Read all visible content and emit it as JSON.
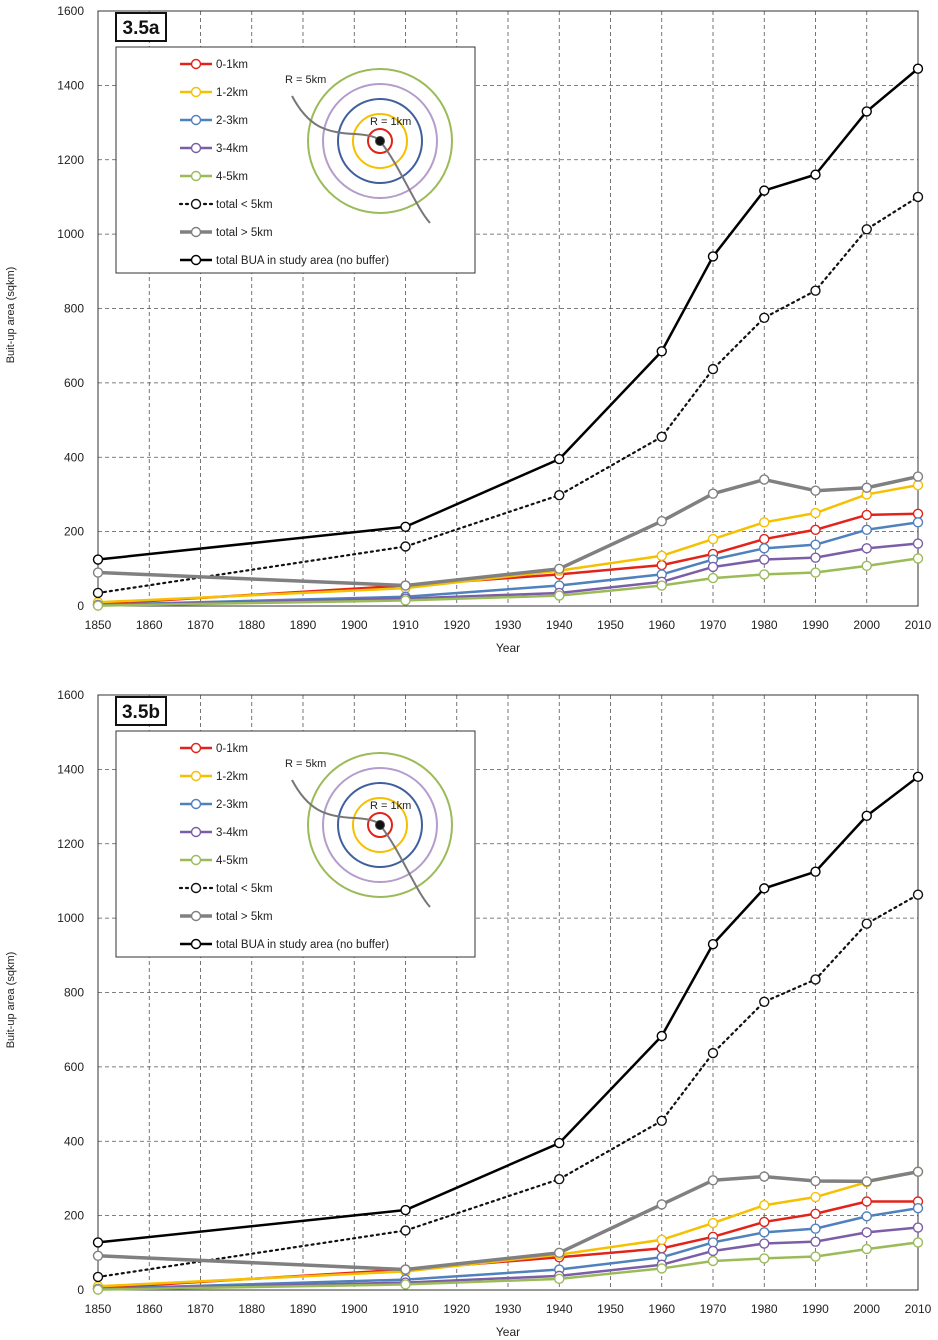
{
  "chart_data": [
    {
      "type": "line",
      "panel_label": "3.5a",
      "xlabel": "Year",
      "ylabel": "Buit-up area (sqkm)",
      "xlim": [
        1850,
        2010
      ],
      "ylim": [
        0,
        1600
      ],
      "xticks": [
        1850,
        1860,
        1870,
        1880,
        1890,
        1900,
        1910,
        1920,
        1930,
        1940,
        1950,
        1960,
        1970,
        1980,
        1990,
        2000,
        2010
      ],
      "yticks": [
        0,
        200,
        400,
        600,
        800,
        1000,
        1200,
        1400,
        1600
      ],
      "grid": true,
      "legend_position": "top-left",
      "inset": {
        "label_outer": "R = 5km",
        "label_inner": "R = 1km",
        "ring_colors": [
          "#e2231a",
          "#f5c000",
          "#3f5f9e",
          "#b49ccc",
          "#9bbb59"
        ]
      },
      "series": [
        {
          "name": "0-1km",
          "color": "#e2231a",
          "style": "solid",
          "width": 2.5,
          "x": [
            1850,
            1910,
            1940,
            1960,
            1970,
            1980,
            1990,
            2000,
            2010
          ],
          "y": [
            5,
            55,
            85,
            110,
            140,
            180,
            205,
            245,
            248
          ]
        },
        {
          "name": "1-2km",
          "color": "#f5c000",
          "style": "solid",
          "width": 2.5,
          "x": [
            1850,
            1910,
            1940,
            1960,
            1970,
            1980,
            1990,
            2000,
            2010
          ],
          "y": [
            10,
            48,
            95,
            135,
            180,
            225,
            250,
            300,
            325
          ]
        },
        {
          "name": "2-3km",
          "color": "#4f81bd",
          "style": "solid",
          "width": 2.5,
          "x": [
            1850,
            1910,
            1940,
            1960,
            1970,
            1980,
            1990,
            2000,
            2010
          ],
          "y": [
            3,
            25,
            55,
            85,
            125,
            155,
            165,
            205,
            225
          ]
        },
        {
          "name": "3-4km",
          "color": "#7b5ea7",
          "style": "solid",
          "width": 2.5,
          "x": [
            1850,
            1910,
            1940,
            1960,
            1970,
            1980,
            1990,
            2000,
            2010
          ],
          "y": [
            2,
            20,
            35,
            65,
            105,
            125,
            130,
            155,
            168
          ]
        },
        {
          "name": "4-5km",
          "color": "#9bbb59",
          "style": "solid",
          "width": 2.5,
          "x": [
            1850,
            1910,
            1940,
            1960,
            1970,
            1980,
            1990,
            2000,
            2010
          ],
          "y": [
            1,
            15,
            28,
            55,
            75,
            85,
            90,
            108,
            128
          ]
        },
        {
          "name": "total < 5km",
          "color": "#111111",
          "style": "dotted",
          "width": 2.2,
          "x": [
            1850,
            1910,
            1940,
            1960,
            1970,
            1980,
            1990,
            2000,
            2010
          ],
          "y": [
            35,
            160,
            298,
            455,
            637,
            775,
            848,
            1013,
            1100
          ]
        },
        {
          "name": "total > 5km",
          "color": "#808080",
          "style": "solid",
          "width": 3.5,
          "x": [
            1850,
            1910,
            1940,
            1960,
            1970,
            1980,
            1990,
            2000,
            2010
          ],
          "y": [
            90,
            55,
            100,
            228,
            302,
            340,
            310,
            318,
            348
          ]
        },
        {
          "name": "total BUA in study area (no buffer)",
          "color": "#000000",
          "style": "solid",
          "width": 2.5,
          "x": [
            1850,
            1910,
            1940,
            1960,
            1970,
            1980,
            1990,
            2000,
            2010
          ],
          "y": [
            125,
            213,
            395,
            685,
            940,
            1117,
            1160,
            1330,
            1445
          ]
        }
      ]
    },
    {
      "type": "line",
      "panel_label": "3.5b",
      "xlabel": "Year",
      "ylabel": "Buit-up area (sqkm)",
      "xlim": [
        1850,
        2010
      ],
      "ylim": [
        0,
        1600
      ],
      "xticks": [
        1850,
        1860,
        1870,
        1880,
        1890,
        1900,
        1910,
        1920,
        1930,
        1940,
        1950,
        1960,
        1970,
        1980,
        1990,
        2000,
        2010
      ],
      "yticks": [
        0,
        200,
        400,
        600,
        800,
        1000,
        1200,
        1400,
        1600
      ],
      "grid": true,
      "legend_position": "top-left",
      "inset": {
        "label_outer": "R = 5km",
        "label_inner": "R = 1km",
        "ring_colors": [
          "#e2231a",
          "#f5c000",
          "#3f5f9e",
          "#b49ccc",
          "#9bbb59"
        ]
      },
      "series": [
        {
          "name": "0-1km",
          "color": "#e2231a",
          "style": "solid",
          "width": 2.5,
          "x": [
            1850,
            1910,
            1940,
            1960,
            1970,
            1980,
            1990,
            2000,
            2010
          ],
          "y": [
            5,
            55,
            88,
            112,
            143,
            183,
            205,
            238,
            238
          ]
        },
        {
          "name": "1-2km",
          "color": "#f5c000",
          "style": "solid",
          "width": 2.5,
          "x": [
            1850,
            1910,
            1940,
            1960,
            1970,
            1980,
            1990,
            2000,
            2010
          ],
          "y": [
            10,
            50,
            95,
            135,
            180,
            228,
            250,
            290,
            318
          ]
        },
        {
          "name": "2-3km",
          "color": "#4f81bd",
          "style": "solid",
          "width": 2.5,
          "x": [
            1850,
            1910,
            1940,
            1960,
            1970,
            1980,
            1990,
            2000,
            2010
          ],
          "y": [
            3,
            28,
            55,
            88,
            128,
            155,
            165,
            198,
            220
          ]
        },
        {
          "name": "3-4km",
          "color": "#7b5ea7",
          "style": "solid",
          "width": 2.5,
          "x": [
            1850,
            1910,
            1940,
            1960,
            1970,
            1980,
            1990,
            2000,
            2010
          ],
          "y": [
            2,
            20,
            38,
            68,
            105,
            125,
            130,
            155,
            168
          ]
        },
        {
          "name": "4-5km",
          "color": "#9bbb59",
          "style": "solid",
          "width": 2.5,
          "x": [
            1850,
            1910,
            1940,
            1960,
            1970,
            1980,
            1990,
            2000,
            2010
          ],
          "y": [
            1,
            15,
            30,
            58,
            78,
            85,
            90,
            110,
            128
          ]
        },
        {
          "name": "total < 5km",
          "color": "#111111",
          "style": "dotted",
          "width": 2.2,
          "x": [
            1850,
            1910,
            1940,
            1960,
            1970,
            1980,
            1990,
            2000,
            2010
          ],
          "y": [
            35,
            160,
            298,
            455,
            637,
            775,
            835,
            985,
            1063
          ]
        },
        {
          "name": "total > 5km",
          "color": "#808080",
          "style": "solid",
          "width": 3.5,
          "x": [
            1850,
            1910,
            1940,
            1960,
            1970,
            1980,
            1990,
            2000,
            2010
          ],
          "y": [
            92,
            55,
            100,
            230,
            295,
            305,
            293,
            292,
            318
          ]
        },
        {
          "name": "total BUA in study area (no buffer)",
          "color": "#000000",
          "style": "solid",
          "width": 2.5,
          "x": [
            1850,
            1910,
            1940,
            1960,
            1970,
            1980,
            1990,
            2000,
            2010
          ],
          "y": [
            128,
            215,
            395,
            683,
            930,
            1080,
            1125,
            1275,
            1380
          ]
        }
      ]
    }
  ]
}
